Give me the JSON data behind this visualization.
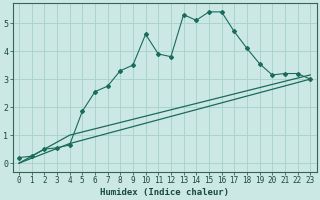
{
  "xlabel": "Humidex (Indice chaleur)",
  "ylabel": "",
  "background_color": "#cce8e4",
  "grid_color": "#aad4cc",
  "line_color": "#1a6b5a",
  "xlim": [
    -0.5,
    23.5
  ],
  "ylim": [
    -0.3,
    5.7
  ],
  "xticks": [
    0,
    1,
    2,
    3,
    4,
    5,
    6,
    7,
    8,
    9,
    10,
    11,
    12,
    13,
    14,
    15,
    16,
    17,
    18,
    19,
    20,
    21,
    22,
    23
  ],
  "yticks": [
    0,
    1,
    2,
    3,
    4,
    5
  ],
  "curve1_x": [
    0,
    1,
    2,
    3,
    4,
    5,
    6,
    7,
    8,
    9,
    10,
    11,
    12,
    13,
    14,
    15,
    16,
    17,
    18,
    19,
    20,
    21,
    22,
    23
  ],
  "curve1_y": [
    0.2,
    0.25,
    0.5,
    0.55,
    0.65,
    1.85,
    2.55,
    2.75,
    3.3,
    3.5,
    4.6,
    3.9,
    3.8,
    5.3,
    5.1,
    5.4,
    5.4,
    4.7,
    4.1,
    3.55,
    3.15,
    3.2,
    3.2,
    3.0
  ],
  "curve2_x": [
    0,
    4,
    23
  ],
  "curve2_y": [
    0.0,
    1.0,
    3.15
  ],
  "curve3_x": [
    0,
    4,
    23
  ],
  "curve3_y": [
    0.0,
    0.7,
    3.0
  ]
}
